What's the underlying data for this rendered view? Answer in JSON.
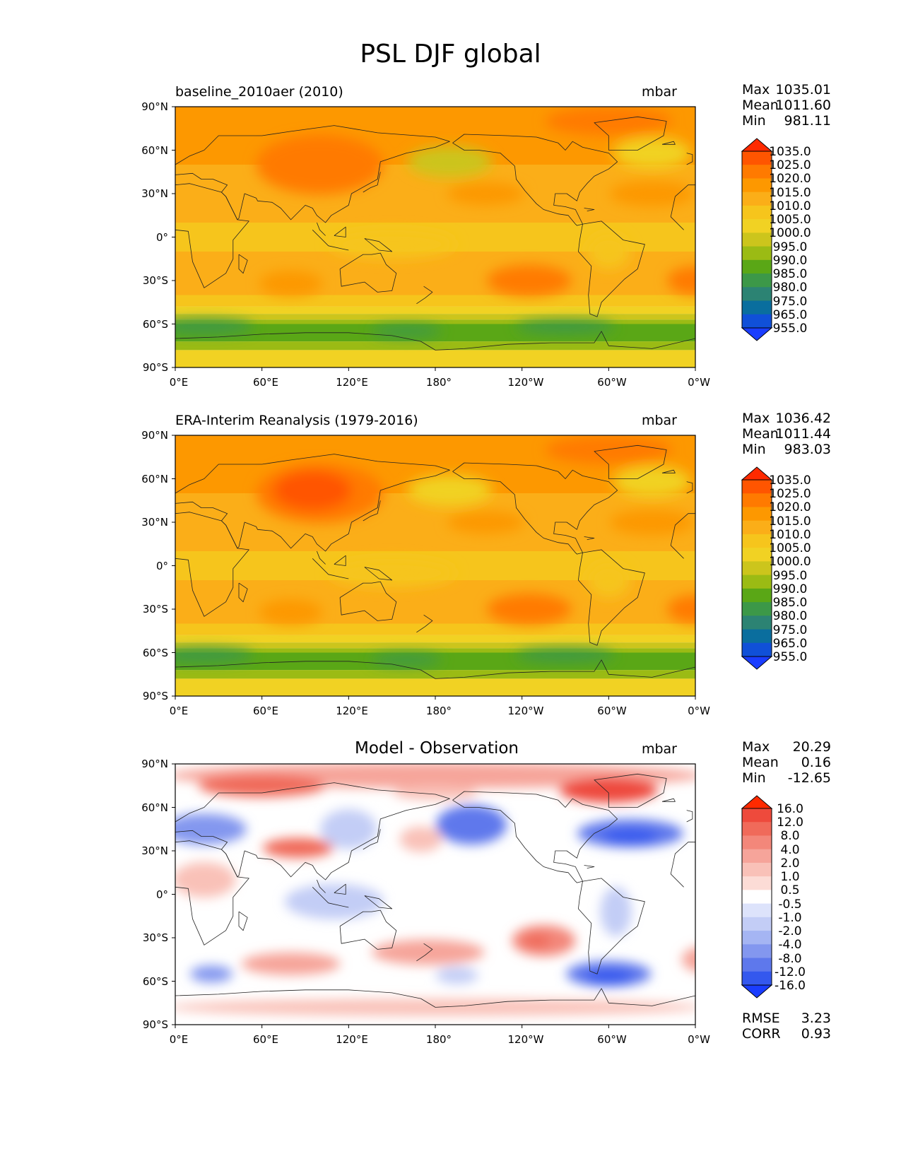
{
  "title": "PSL DJF global",
  "x_ticks": [
    "0°E",
    "60°E",
    "120°E",
    "180°",
    "120°W",
    "60°W",
    "0°W"
  ],
  "y_ticks": [
    "90°N",
    "60°N",
    "30°N",
    "0°",
    "30°S",
    "60°S",
    "90°S"
  ],
  "panels": [
    {
      "title": "baseline_2010aer (2010)",
      "units": "mbar",
      "stats": [
        {
          "label": "Max",
          "value": "1035.01"
        },
        {
          "label": "Mean",
          "value": "1011.60"
        },
        {
          "label": "Min",
          "value": "981.11"
        }
      ],
      "colorbar_labels": [
        "1035.0",
        "1025.0",
        "1020.0",
        "1015.0",
        "1010.0",
        "1005.0",
        "1000.0",
        "995.0",
        "990.0",
        "985.0",
        "980.0",
        "975.0",
        "965.0",
        "955.0"
      ]
    },
    {
      "title": "ERA-Interim Reanalysis (1979-2016)",
      "units": "mbar",
      "stats": [
        {
          "label": "Max",
          "value": "1036.42"
        },
        {
          "label": "Mean",
          "value": "1011.44"
        },
        {
          "label": "Min",
          "value": "983.03"
        }
      ],
      "colorbar_labels": [
        "1035.0",
        "1025.0",
        "1020.0",
        "1015.0",
        "1010.0",
        "1005.0",
        "1000.0",
        "995.0",
        "990.0",
        "985.0",
        "980.0",
        "975.0",
        "965.0",
        "955.0"
      ]
    },
    {
      "title": "Model - Observation",
      "units": "mbar",
      "stats": [
        {
          "label": "Max",
          "value": "20.29"
        },
        {
          "label": "Mean",
          "value": "0.16"
        },
        {
          "label": "Min",
          "value": "-12.65"
        }
      ],
      "colorbar_labels": [
        "16.0",
        "12.0",
        "8.0",
        "4.0",
        "2.0",
        "1.0",
        "0.5",
        "-0.5",
        "-1.0",
        "-2.0",
        "-4.0",
        "-8.0",
        "-12.0",
        "-16.0"
      ],
      "metrics": [
        {
          "label": "RMSE",
          "value": "3.23"
        },
        {
          "label": "CORR",
          "value": "0.93"
        }
      ]
    }
  ],
  "colors": {
    "psl_scale": [
      "#ff2a00",
      "#ff5500",
      "#ff7a00",
      "#fd9800",
      "#fbae18",
      "#f6c51c",
      "#f1d223",
      "#ccc51c",
      "#9bbb14",
      "#5aa716",
      "#3c9848",
      "#2c8373",
      "#0a6e9e",
      "#1050d8",
      "#1a3dff"
    ],
    "diff_scale": [
      "#ff2a00",
      "#ee4a3c",
      "#f06a5a",
      "#f3877a",
      "#f6a49a",
      "#f9c1b8",
      "#fcdcd6",
      "#ffffff",
      "#dde3fb",
      "#c3cdf6",
      "#a5b5f3",
      "#8397ef",
      "#5e78ec",
      "#3458ee",
      "#1a3dff"
    ],
    "coast": "#222222"
  }
}
